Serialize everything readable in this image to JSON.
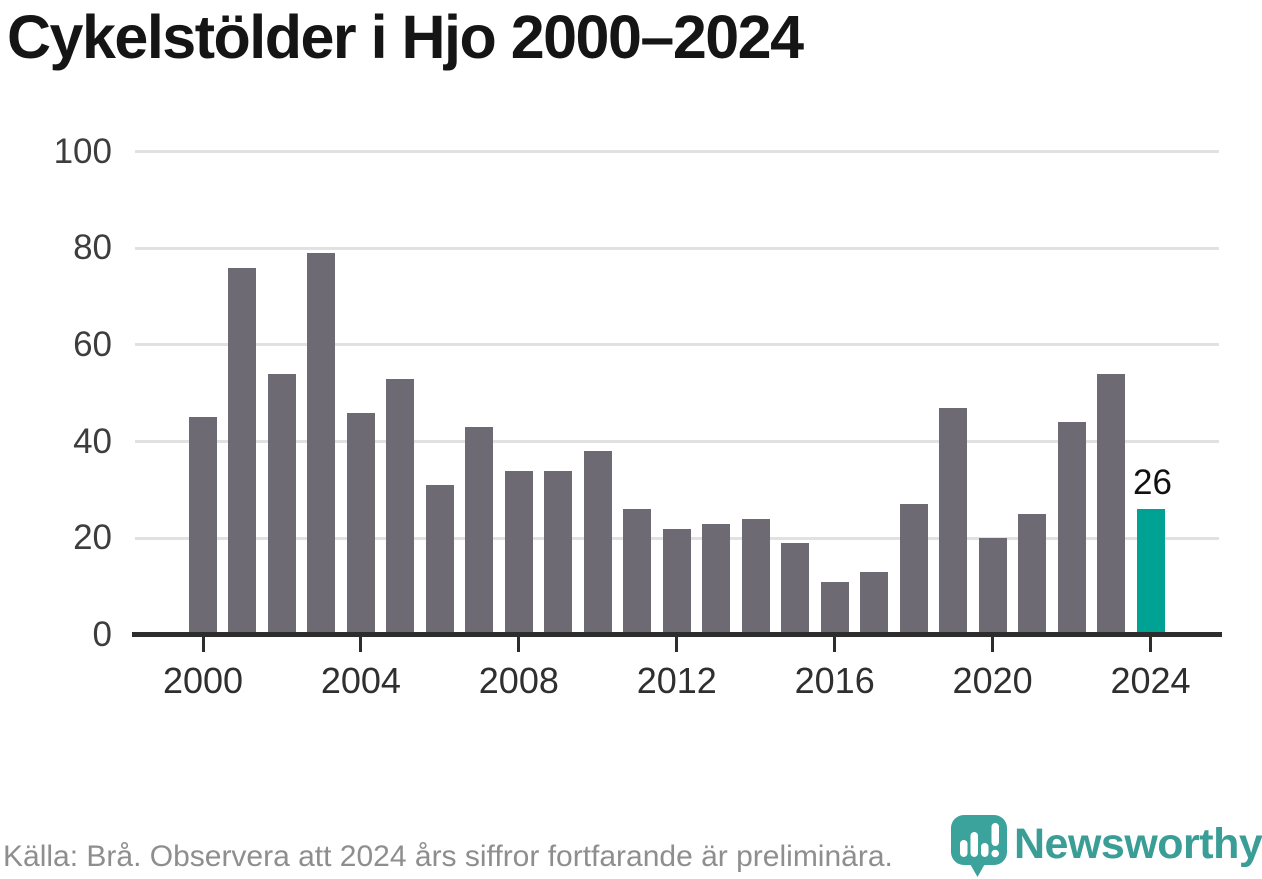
{
  "title": "Cykelstölder i Hjo 2000–2024",
  "footer": {
    "source_note": "Källa: Brå. Observera att 2024 års siffror fortfarande är preliminära."
  },
  "branding": {
    "name": "Newsworthy",
    "logo_icon": "speech-bubble-bar-chart-icon",
    "brand_color": "#3a9d96"
  },
  "chart_data": {
    "type": "bar",
    "title": "Cykelstölder i Hjo 2000–2024",
    "x": [
      2000,
      2001,
      2002,
      2003,
      2004,
      2005,
      2006,
      2007,
      2008,
      2009,
      2010,
      2011,
      2012,
      2013,
      2014,
      2015,
      2016,
      2017,
      2018,
      2019,
      2020,
      2021,
      2022,
      2023,
      2024
    ],
    "values": [
      45,
      76,
      54,
      79,
      46,
      53,
      31,
      43,
      34,
      34,
      38,
      26,
      22,
      23,
      24,
      19,
      11,
      13,
      27,
      47,
      20,
      25,
      44,
      54,
      26
    ],
    "highlight_year": 2024,
    "highlight_value_label": "26",
    "xlabel": "",
    "ylabel": "",
    "ylim": [
      0,
      100
    ],
    "yticks": [
      0,
      20,
      40,
      60,
      80,
      100
    ],
    "xticks": [
      2000,
      2004,
      2008,
      2012,
      2016,
      2020,
      2024
    ],
    "grid": "horizontal",
    "legend": "none",
    "colors": {
      "bar": "#6e6a73",
      "highlight": "#00a294",
      "gridline": "#e1e1e1",
      "axis": "#2d2d2d",
      "tick_label": "#2f2f2f",
      "y_label": "#3d3d3d"
    }
  }
}
